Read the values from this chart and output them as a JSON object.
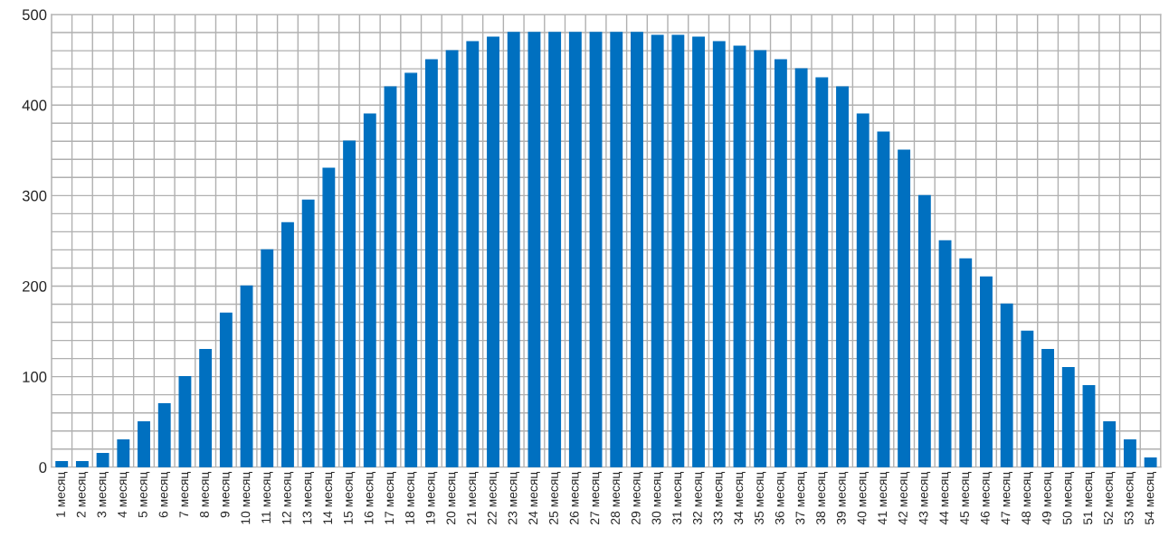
{
  "chart_data": {
    "type": "bar",
    "categories": [
      "1 месяц",
      "2 месяц",
      "3 месяц",
      "4 месяц",
      "5 месяц",
      "6 месяц",
      "7 месяц",
      "8 месяц",
      "9 месяц",
      "10 месяц",
      "11 месяц",
      "12 месяц",
      "13 месяц",
      "14 месяц",
      "15 месяц",
      "16 месяц",
      "17 месяц",
      "18 месяц",
      "19 месяц",
      "20 месяц",
      "21 месяц",
      "22 месяц",
      "23 месяц",
      "24 месяц",
      "25 месяц",
      "26 месяц",
      "27 месяц",
      "28 месяц",
      "29 месяц",
      "30 месяц",
      "31 месяц",
      "32 месяц",
      "33 месяц",
      "34 месяц",
      "35 месяц",
      "36 месяц",
      "37 месяц",
      "38 месяц",
      "39 месяц",
      "40 месяц",
      "41 месяц",
      "42 месяц",
      "43 месяц",
      "44 месяц",
      "45 месяц",
      "46 месяц",
      "47 месяц",
      "48 месяц",
      "49 месяц",
      "50 месяц",
      "51 месяц",
      "52 месяц",
      "53 месяц",
      "54 месяц"
    ],
    "values": [
      6,
      6,
      15,
      30,
      50,
      70,
      100,
      130,
      170,
      200,
      240,
      270,
      295,
      330,
      360,
      390,
      420,
      435,
      450,
      460,
      470,
      475,
      480,
      480,
      480,
      480,
      480,
      480,
      480,
      477,
      477,
      475,
      470,
      465,
      460,
      450,
      440,
      430,
      420,
      390,
      370,
      350,
      300,
      250,
      230,
      210,
      180,
      150,
      130,
      110,
      90,
      50,
      30,
      10
    ],
    "color": "#0070c0",
    "ylim": [
      0,
      500
    ],
    "yticks": [
      0,
      {
        "value": 20,
        "label": null
      },
      {
        "value": 40,
        "label": null
      },
      {
        "value": 60,
        "label": null
      },
      {
        "value": 80,
        "label": null
      },
      100,
      {
        "value": 120,
        "label": null
      },
      {
        "value": 140,
        "label": null
      },
      {
        "value": 160,
        "label": null
      },
      {
        "value": 180,
        "label": null
      },
      200,
      {
        "value": 220,
        "label": null
      },
      {
        "value": 240,
        "label": null
      },
      {
        "value": 260,
        "label": null
      },
      {
        "value": 280,
        "label": null
      },
      300,
      {
        "value": 320,
        "label": null
      },
      {
        "value": 340,
        "label": null
      },
      {
        "value": 360,
        "label": null
      },
      {
        "value": 380,
        "label": null
      },
      400,
      {
        "value": 420,
        "label": null
      },
      {
        "value": 440,
        "label": null
      },
      {
        "value": 460,
        "label": null
      },
      {
        "value": 480,
        "label": null
      },
      500
    ],
    "grid": true
  }
}
